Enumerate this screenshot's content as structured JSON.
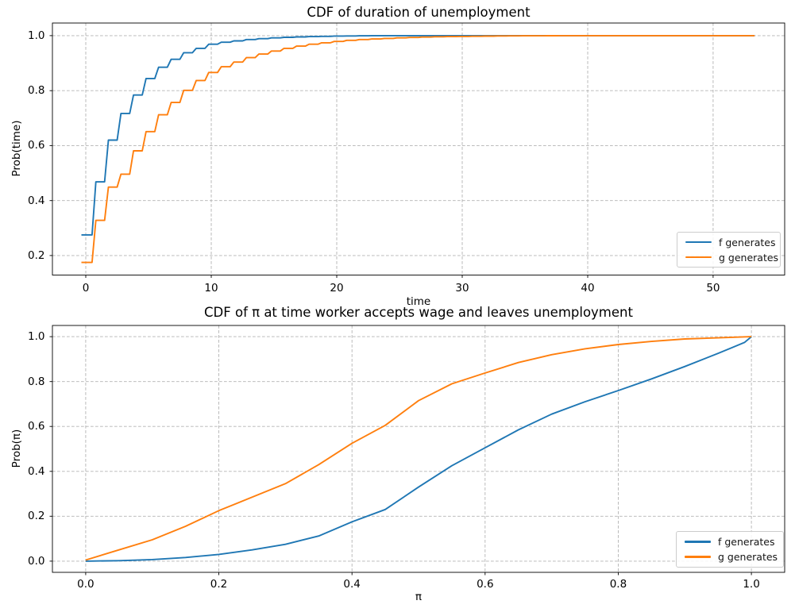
{
  "figure": {
    "background": "#ffffff"
  },
  "colors": {
    "f": "#1f77b4",
    "g": "#ff7f0e",
    "grid": "#b3b3b3",
    "spine": "#000000",
    "text": "#151515"
  },
  "chart_data": [
    {
      "type": "line",
      "style": "step",
      "title": "CDF of duration of unemployment",
      "xlabel": "time",
      "ylabel": "Prob(time)",
      "grid": true,
      "legend_position": "lower right",
      "x_ticks": [
        0,
        10,
        20,
        30,
        40,
        50
      ],
      "x_tick_labels": [
        "0",
        "10",
        "20",
        "30",
        "40",
        "50"
      ],
      "y_ticks": [
        0.2,
        0.4,
        0.6,
        0.8,
        1.0
      ],
      "y_tick_labels": [
        "0.2",
        "0.4",
        "0.6",
        "0.8",
        "1.0"
      ],
      "xlim": [
        -2.66,
        55.7
      ],
      "ylim": [
        0.129,
        1.046
      ],
      "step_start": -0.35,
      "x_end": 53.3,
      "series": [
        {
          "name": "f generates",
          "color_key": "f",
          "levels": [
            0.275,
            0.468,
            0.62,
            0.717,
            0.784,
            0.844,
            0.885,
            0.914,
            0.938,
            0.954,
            0.969,
            0.976,
            0.981,
            0.986,
            0.989,
            0.992,
            0.994,
            0.9955,
            0.9965,
            0.9975,
            0.9985,
            0.999,
            0.9995,
            1.0
          ]
        },
        {
          "name": "g generates",
          "color_key": "g",
          "levels": [
            0.175,
            0.328,
            0.449,
            0.496,
            0.581,
            0.651,
            0.712,
            0.757,
            0.801,
            0.837,
            0.866,
            0.887,
            0.904,
            0.92,
            0.933,
            0.944,
            0.954,
            0.962,
            0.969,
            0.974,
            0.979,
            0.983,
            0.986,
            0.988,
            0.99,
            0.992,
            0.9935,
            0.995,
            0.996,
            0.9967,
            0.9973,
            0.9979,
            0.9984,
            0.9988,
            0.9991,
            0.9994,
            0.9996,
            0.9998,
            1.0
          ]
        }
      ]
    },
    {
      "type": "line",
      "style": "smooth",
      "title": "CDF of π at time worker accepts wage and leaves unemployment",
      "xlabel": "π",
      "ylabel": "Prob(π)",
      "grid": true,
      "legend_position": "lower right",
      "x_ticks": [
        0.0,
        0.2,
        0.4,
        0.6,
        0.8,
        1.0
      ],
      "x_tick_labels": [
        "0.0",
        "0.2",
        "0.4",
        "0.6",
        "0.8",
        "1.0"
      ],
      "y_ticks": [
        0.0,
        0.2,
        0.4,
        0.6,
        0.8,
        1.0
      ],
      "y_tick_labels": [
        "0.0",
        "0.2",
        "0.4",
        "0.6",
        "0.8",
        "1.0"
      ],
      "xlim": [
        -0.05,
        1.05
      ],
      "ylim": [
        -0.05,
        1.05
      ],
      "series": [
        {
          "name": "f generates",
          "color_key": "f",
          "points": [
            [
              0.0,
              0.0
            ],
            [
              0.05,
              0.002
            ],
            [
              0.1,
              0.007
            ],
            [
              0.15,
              0.016
            ],
            [
              0.2,
              0.03
            ],
            [
              0.25,
              0.05
            ],
            [
              0.3,
              0.075
            ],
            [
              0.35,
              0.112
            ],
            [
              0.4,
              0.175
            ],
            [
              0.45,
              0.23
            ],
            [
              0.5,
              0.33
            ],
            [
              0.55,
              0.425
            ],
            [
              0.6,
              0.505
            ],
            [
              0.65,
              0.585
            ],
            [
              0.7,
              0.655
            ],
            [
              0.75,
              0.71
            ],
            [
              0.8,
              0.76
            ],
            [
              0.85,
              0.812
            ],
            [
              0.9,
              0.867
            ],
            [
              0.95,
              0.926
            ],
            [
              0.97,
              0.95
            ],
            [
              0.99,
              0.975
            ],
            [
              1.0,
              1.0
            ]
          ]
        },
        {
          "name": "g generates",
          "color_key": "g",
          "points": [
            [
              0.0,
              0.005
            ],
            [
              0.05,
              0.05
            ],
            [
              0.1,
              0.095
            ],
            [
              0.15,
              0.155
            ],
            [
              0.2,
              0.225
            ],
            [
              0.25,
              0.285
            ],
            [
              0.3,
              0.345
            ],
            [
              0.35,
              0.43
            ],
            [
              0.4,
              0.525
            ],
            [
              0.45,
              0.605
            ],
            [
              0.5,
              0.715
            ],
            [
              0.55,
              0.79
            ],
            [
              0.6,
              0.838
            ],
            [
              0.65,
              0.885
            ],
            [
              0.7,
              0.92
            ],
            [
              0.75,
              0.946
            ],
            [
              0.8,
              0.965
            ],
            [
              0.85,
              0.979
            ],
            [
              0.9,
              0.99
            ],
            [
              0.95,
              0.995
            ],
            [
              1.0,
              1.0
            ]
          ]
        }
      ]
    }
  ]
}
